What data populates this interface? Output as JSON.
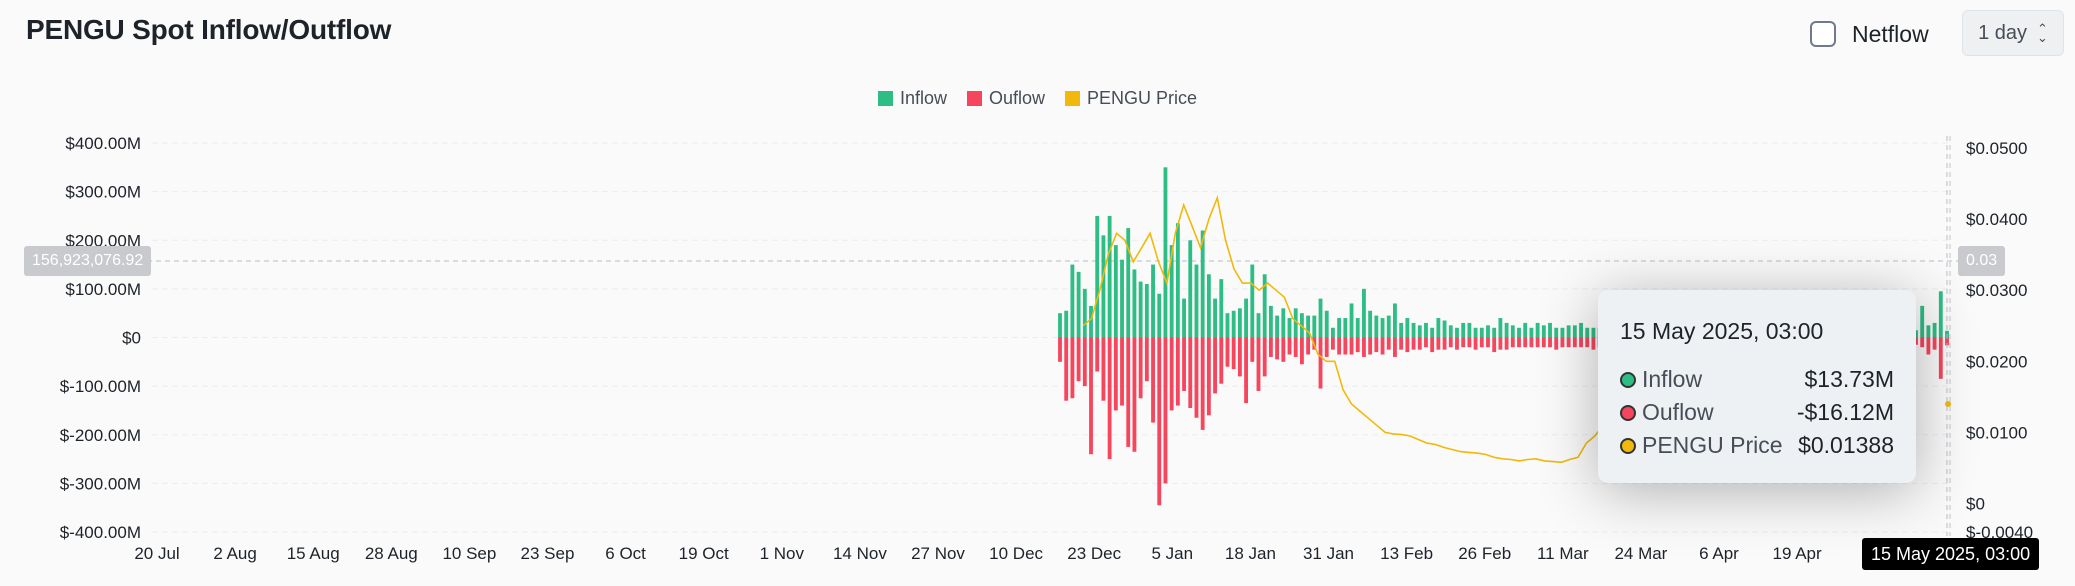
{
  "header": {
    "title": "PENGU Spot Inflow/Outflow",
    "netflow_label": "Netflow",
    "netflow_checked": false,
    "interval": "1 day"
  },
  "legend": [
    {
      "label": "Inflow",
      "color": "#2ebd85"
    },
    {
      "label": "Ouflow",
      "color": "#f6465d"
    },
    {
      "label": "PENGU Price",
      "color": "#f0b90b"
    }
  ],
  "crosshair": {
    "y_value": "156,923,076.92",
    "price_value": "0.03",
    "x_value": "15 May 2025, 03:00"
  },
  "tooltip": {
    "date": "15 May 2025, 03:00",
    "rows": [
      {
        "label": "Inflow",
        "value": "$13.73M",
        "color": "#2ebd85"
      },
      {
        "label": "Ouflow",
        "value": "-$16.12M",
        "color": "#f6465d"
      },
      {
        "label": "PENGU Price",
        "value": "$0.01388",
        "color": "#f0b90b"
      }
    ]
  },
  "chart_data": {
    "type": "bar",
    "left_axis_ticks": [
      "$400.00M",
      "$300.00M",
      "$200.00M",
      "$100.00M",
      "$0",
      "$-100.00M",
      "$-200.00M",
      "$-300.00M",
      "$-400.00M"
    ],
    "right_axis_ticks": [
      "$0.0500",
      "$0.0400",
      "$0.0300",
      "$0.0200",
      "$0.0100",
      "$0",
      "$-0.0040"
    ],
    "x_ticks": [
      "20 Jul",
      "2 Aug",
      "15 Aug",
      "28 Aug",
      "10 Sep",
      "23 Sep",
      "6 Oct",
      "19 Oct",
      "1 Nov",
      "14 Nov",
      "27 Nov",
      "10 Dec",
      "23 Dec",
      "5 Jan",
      "18 Jan",
      "31 Jan",
      "13 Feb",
      "26 Feb",
      "11 Mar",
      "24 Mar",
      "6 Apr",
      "19 Apr",
      "2"
    ],
    "ylim": [
      -400,
      400
    ],
    "y2lim": [
      -0.004,
      0.05
    ],
    "units": "millions USD (bars), USD (price)",
    "bar_start_date": "2024-12-17",
    "series": [
      {
        "name": "Inflow",
        "values": [
          50,
          55,
          150,
          135,
          100,
          65,
          250,
          210,
          250,
          190,
          160,
          225,
          140,
          115,
          110,
          150,
          90,
          350,
          190,
          235,
          80,
          200,
          150,
          220,
          130,
          80,
          120,
          50,
          55,
          60,
          80,
          150,
          50,
          130,
          65,
          45,
          60,
          40,
          60,
          50,
          45,
          45,
          80,
          55,
          20,
          40,
          40,
          70,
          40,
          100,
          55,
          45,
          40,
          45,
          70,
          30,
          40,
          30,
          25,
          30,
          20,
          40,
          35,
          25,
          20,
          30,
          30,
          20,
          20,
          25,
          20,
          40,
          30,
          25,
          20,
          30,
          20,
          30,
          25,
          30,
          20,
          20,
          25,
          25,
          30,
          20,
          20,
          20,
          25,
          25,
          25,
          20,
          20,
          25,
          20,
          20,
          20,
          20,
          15,
          20,
          20,
          20,
          20,
          15,
          15,
          20,
          20,
          15,
          15,
          15,
          15,
          20,
          15,
          20,
          15,
          15,
          15,
          15,
          15,
          20,
          20,
          15,
          15,
          15,
          15,
          25,
          20,
          15,
          15,
          15,
          15,
          15,
          15,
          20,
          20,
          15,
          90,
          15,
          15,
          65,
          25,
          30,
          95,
          13.73
        ]
      },
      {
        "name": "Ouflow",
        "values": [
          -50,
          -130,
          -125,
          -90,
          -100,
          -240,
          -70,
          -130,
          -250,
          -150,
          -140,
          -225,
          -235,
          -125,
          -90,
          -175,
          -345,
          -300,
          -150,
          -140,
          -110,
          -145,
          -165,
          -190,
          -160,
          -115,
          -95,
          -60,
          -65,
          -80,
          -135,
          -50,
          -110,
          -80,
          -40,
          -45,
          -50,
          -35,
          -40,
          -55,
          -35,
          -25,
          -105,
          -40,
          -25,
          -35,
          -35,
          -35,
          -30,
          -40,
          -35,
          -30,
          -35,
          -25,
          -40,
          -25,
          -30,
          -25,
          -25,
          -20,
          -30,
          -25,
          -25,
          -20,
          -25,
          -20,
          -20,
          -25,
          -20,
          -20,
          -30,
          -25,
          -25,
          -20,
          -20,
          -20,
          -20,
          -20,
          -20,
          -20,
          -25,
          -20,
          -20,
          -20,
          -20,
          -20,
          -25,
          -20,
          -20,
          -20,
          -15,
          -20,
          -15,
          -20,
          -20,
          -20,
          -15,
          -20,
          -15,
          -15,
          -20,
          -20,
          -15,
          -15,
          -15,
          -15,
          -15,
          -15,
          -15,
          -20,
          -15,
          -15,
          -15,
          -15,
          -15,
          -15,
          -15,
          -15,
          -20,
          -15,
          -15,
          -15,
          -15,
          -20,
          -20,
          -15,
          -15,
          -15,
          -15,
          -15,
          -15,
          -15,
          -15,
          -15,
          -25,
          -15,
          -20,
          -20,
          -15,
          -20,
          -35,
          -25,
          -85,
          -16.12
        ]
      },
      {
        "name": "PENGU Price",
        "values": [
          0.025,
          0.026,
          0.03,
          0.035,
          0.038,
          0.037,
          0.034,
          0.036,
          0.038,
          0.034,
          0.031,
          0.038,
          0.042,
          0.039,
          0.036,
          0.04,
          0.043,
          0.037,
          0.033,
          0.031,
          0.031,
          0.03,
          0.031,
          0.03,
          0.029,
          0.026,
          0.025,
          0.024,
          0.021,
          0.02,
          0.02,
          0.016,
          0.014,
          0.013,
          0.012,
          0.011,
          0.01,
          0.0098,
          0.0097,
          0.0095,
          0.009,
          0.0085,
          0.0083,
          0.0079,
          0.0076,
          0.0073,
          0.0072,
          0.0071,
          0.0069,
          0.0065,
          0.0063,
          0.0062,
          0.006,
          0.0062,
          0.0063,
          0.006,
          0.0059,
          0.0058,
          0.0062,
          0.0065,
          0.0085,
          0.0095,
          0.011,
          0.013,
          0.01388
        ]
      }
    ]
  }
}
